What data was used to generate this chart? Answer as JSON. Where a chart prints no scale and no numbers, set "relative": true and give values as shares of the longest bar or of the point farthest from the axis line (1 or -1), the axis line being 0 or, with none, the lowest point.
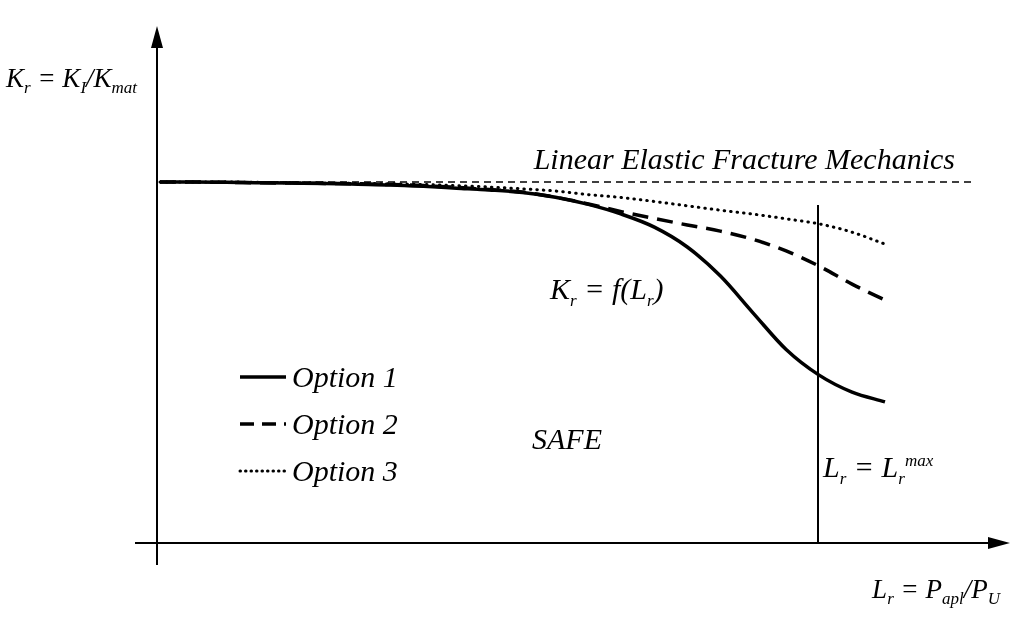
{
  "chart_data": {
    "type": "line",
    "relative": true,
    "xlabel": "L$_{r}$ = P$_{apl}$/P$_{U}$",
    "ylabel": "K$_{r}$ = K$_{I}$/K$_{mat}$",
    "categories": [
      null,
      null,
      null,
      null,
      null,
      null,
      null,
      null,
      null,
      null,
      null,
      null,
      null,
      null,
      null,
      null,
      null,
      null,
      null,
      null,
      null,
      null,
      null
    ],
    "series": [
      {
        "name": "Option 1",
        "color": "#000000",
        "line_style": "solid",
        "values": [
          1,
          1,
          0.999,
          0.998,
          0.997,
          0.996,
          0.994,
          0.992,
          0.988,
          0.983,
          0.978,
          0.971,
          0.958,
          0.938,
          0.911,
          0.875,
          0.82,
          0.74,
          0.637,
          0.536,
          0.465,
          0.418,
          0.391
        ]
      },
      {
        "name": "Option 2",
        "color": "#000000",
        "line_style": "dashed",
        "values": [
          1,
          1,
          0.999,
          0.998,
          0.997,
          0.996,
          0.995,
          0.993,
          0.99,
          0.985,
          0.979,
          0.972,
          0.958,
          0.939,
          0.918,
          0.899,
          0.881,
          0.864,
          0.841,
          0.809,
          0.767,
          0.717,
          0.673
        ]
      },
      {
        "name": "Option 3",
        "color": "#000000",
        "line_style": "dotted",
        "values": [
          1,
          1,
          1,
          0.999,
          0.998,
          0.997,
          0.996,
          0.995,
          0.993,
          0.99,
          0.986,
          0.981,
          0.975,
          0.965,
          0.957,
          0.946,
          0.934,
          0.922,
          0.911,
          0.898,
          0.884,
          0.861,
          0.828
        ]
      }
    ],
    "ref_lines": [
      {
        "axis": "y",
        "value": 1,
        "label": "Linear Elastic Fracture Mechanics",
        "line_style": "dashed",
        "color": "#000000"
      }
    ],
    "annotations": [
      "K$_{r}$ = f(L$_{r}$)",
      "SAFE",
      "L$_{r}$ = L$_{r}$$^{max}$"
    ],
    "legend": "bottom left",
    "marker": "none"
  }
}
